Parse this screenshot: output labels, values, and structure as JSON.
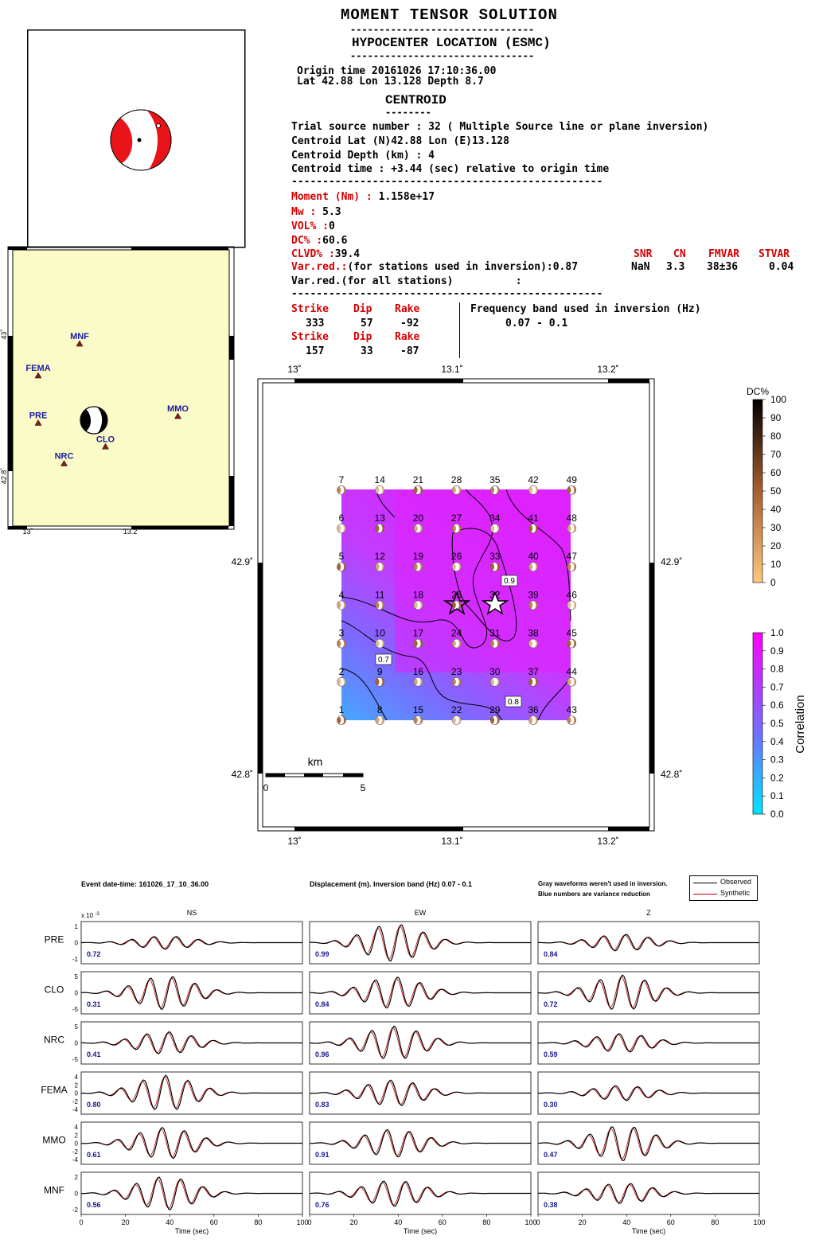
{
  "header": {
    "title": "MOMENT TENSOR SOLUTION",
    "hypo_title": "HYPOCENTER LOCATION (ESMC)",
    "origin_time": "Origin time 20161026 17:10:36.00",
    "origin_loc": "Lat 42.88 Lon 13.128 Depth 8.7",
    "centroid_title": "CENTROID"
  },
  "centroid": {
    "trial": "Trial source number : 32 ( Multiple Source line or plane inversion)",
    "latlon": "Centroid Lat (N)42.88 Lon (E)13.128",
    "depth": "Centroid Depth (km) : 4",
    "time": "Centroid time : +3.44 (sec) relative to origin time",
    "dashes": "--------------------------------------------------"
  },
  "moment": {
    "moment_label": "Moment (Nm) :",
    "moment_value": "1.158e+17",
    "mw_label": "Mw :",
    "mw_value": "5.3",
    "vol_label": "VOL% :",
    "vol_value": "0",
    "dc_label": "DC% :",
    "dc_value": "60.6",
    "clvd_label": "CLVD% :",
    "clvd_value": "39.4",
    "varred_label": "Var.red.:",
    "varred_text": "(for stations used in inversion):0.87",
    "varred_all": "Var.red.(for all stations)          :",
    "snr_h": "SNR",
    "cn_h": "CN",
    "fmvar_h": "FMVAR",
    "stvar_h": "STVAR",
    "snr": "NaN",
    "cn": "3.3",
    "fmvar": "38±36",
    "stvar": "0.04"
  },
  "planes": {
    "strike_h": "Strike",
    "dip_h": "Dip",
    "rake_h": "Rake",
    "p1": [
      "333",
      "57",
      "-92"
    ],
    "p2": [
      "157",
      "33",
      "-87"
    ],
    "freq_label": "Frequency band used in inversion (Hz)",
    "freq_value": "0.07 - 0.1"
  },
  "station_map": {
    "stations": [
      {
        "name": "MNF",
        "lon": 13.1,
        "lat": 42.987
      },
      {
        "name": "FEMA",
        "lon": 13.02,
        "lat": 42.94
      },
      {
        "name": "MMO",
        "lon": 13.29,
        "lat": 42.88
      },
      {
        "name": "PRE",
        "lon": 13.02,
        "lat": 42.87
      },
      {
        "name": "CLO",
        "lon": 13.15,
        "lat": 42.835
      },
      {
        "name": "NRC",
        "lon": 13.07,
        "lat": 42.81
      }
    ],
    "x_ticks": [
      "13˚",
      "13.2˚"
    ],
    "y_ticks": [
      "43˚",
      "42.8˚"
    ]
  },
  "grid_map": {
    "x_ticks": [
      "13˚",
      "13.1˚",
      "13.2˚"
    ],
    "y_ticks": [
      "42.9˚",
      "42.8˚"
    ],
    "scale_label": "km",
    "scale_ticks": [
      "0",
      "5"
    ],
    "contour_labels": [
      "0.9",
      "0.7",
      "0.8",
      "0.8"
    ],
    "dc_label": "DC%",
    "dc_ticks": [
      "100",
      "90",
      "80",
      "70",
      "60",
      "50",
      "40",
      "30",
      "20",
      "10",
      "0"
    ],
    "corr_label": "Correlation",
    "corr_ticks": [
      "1.0",
      "0.9",
      "0.8",
      "0.7",
      "0.6",
      "0.5",
      "0.4",
      "0.3",
      "0.2",
      "0.1",
      "0.0"
    ]
  },
  "waveforms": {
    "event": "Event date-time: 161026_17_10_36.00",
    "displacement": "Displacement (m).  Inversion band (Hz)  0.07 - 0.1",
    "note1": "Gray waveforms weren't used in inversion.",
    "note2": "Blue numbers are variance reduction",
    "legend_obs": "Observed",
    "legend_syn": "Synthetic",
    "components": [
      "NS",
      "EW",
      "Z"
    ],
    "xlabel": "Time (sec)",
    "x_ticks": [
      "0",
      "20",
      "40",
      "60",
      "80",
      "100"
    ],
    "scale_note": "x 10",
    "scale_exp": "-3",
    "rows": [
      {
        "station": "PRE",
        "vr": [
          "0.72",
          "0.99",
          "0.84"
        ],
        "yt": [
          "1",
          "0",
          "-1"
        ]
      },
      {
        "station": "CLO",
        "vr": [
          "0.31",
          "0.84",
          "0.72"
        ],
        "yt": [
          "5",
          "0",
          "-5"
        ]
      },
      {
        "station": "NRC",
        "vr": [
          "0.41",
          "0.96",
          "0.59"
        ],
        "yt": [
          "5",
          "0",
          "-5"
        ]
      },
      {
        "station": "FEMA",
        "vr": [
          "0.80",
          "0.83",
          "0.30"
        ],
        "yt": [
          "4",
          "2",
          "0",
          "-2",
          "-4"
        ]
      },
      {
        "station": "MMO",
        "vr": [
          "0.61",
          "0.91",
          "0.47"
        ],
        "yt": [
          "4",
          "2",
          "0",
          "-2",
          "-4"
        ]
      },
      {
        "station": "MNF",
        "vr": [
          "0.56",
          "0.76",
          "0.38"
        ],
        "yt": [
          "2",
          "0",
          "-2"
        ]
      }
    ]
  },
  "colors": {
    "map_bg": "#fbfbc8",
    "beach_red": "#e8141a",
    "corr_top": "#ff00ff",
    "corr_bottom": "#00e5ff",
    "synthetic": "#c00000"
  }
}
